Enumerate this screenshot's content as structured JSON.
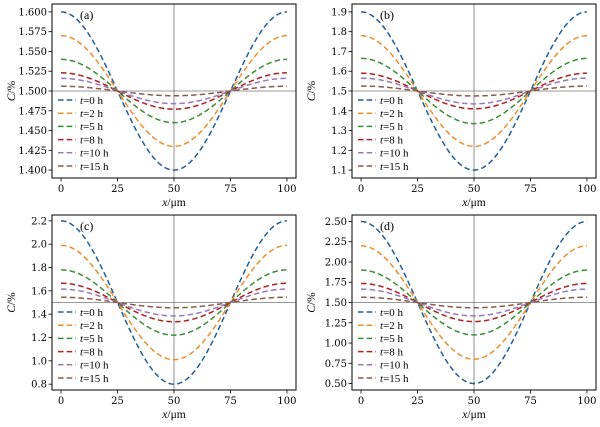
{
  "colors": {
    "t0": "#1f5f99",
    "t2": "#f08c2a",
    "t5": "#3a8f32",
    "t8": "#b31e1e",
    "t10": "#9a78bd",
    "t15": "#8a5a4a"
  },
  "chart_data": [
    {
      "type": "line",
      "panel_label": "(a)",
      "xlabel_var": "x",
      "xlabel_unit": "/μm",
      "ylabel_var": "C",
      "ylabel_unit": "/%",
      "xlim": [
        -4,
        104
      ],
      "ylim": [
        1.39,
        1.61
      ],
      "xticks": [
        0,
        25,
        50,
        75,
        100
      ],
      "yticks": [
        1.4,
        1.425,
        1.45,
        1.475,
        1.5,
        1.525,
        1.55,
        1.575,
        1.6
      ],
      "ytick_labels": [
        "1.400",
        "1.425",
        "1.450",
        "1.475",
        "1.500",
        "1.525",
        "1.550",
        "1.575",
        "1.600"
      ],
      "ref_x": 50,
      "ref_y": 1.5,
      "mean": 1.5,
      "legend_position": "lower-left",
      "series": [
        {
          "name_var": "t",
          "name_rest": "=0 h",
          "color_key": "t0",
          "amplitude": 0.1
        },
        {
          "name_var": "t",
          "name_rest": "=2 h",
          "color_key": "t2",
          "amplitude": 0.07
        },
        {
          "name_var": "t",
          "name_rest": "=5 h",
          "color_key": "t5",
          "amplitude": 0.04
        },
        {
          "name_var": "t",
          "name_rest": "=8 h",
          "color_key": "t8",
          "amplitude": 0.023
        },
        {
          "name_var": "t",
          "name_rest": "=10 h",
          "color_key": "t10",
          "amplitude": 0.016
        },
        {
          "name_var": "t",
          "name_rest": "=15 h",
          "color_key": "t15",
          "amplitude": 0.006
        }
      ]
    },
    {
      "type": "line",
      "panel_label": "(b)",
      "xlabel_var": "x",
      "xlabel_unit": "/μm",
      "ylabel_var": "C",
      "ylabel_unit": "/%",
      "xlim": [
        -4,
        104
      ],
      "ylim": [
        1.06,
        1.94
      ],
      "xticks": [
        0,
        25,
        50,
        75,
        100
      ],
      "yticks": [
        1.1,
        1.2,
        1.3,
        1.4,
        1.5,
        1.6,
        1.7,
        1.8,
        1.9
      ],
      "ytick_labels": [
        "1.1",
        "1.2",
        "1.3",
        "1.4",
        "1.5",
        "1.6",
        "1.7",
        "1.8",
        "1.9"
      ],
      "ref_x": 50,
      "ref_y": 1.5,
      "mean": 1.5,
      "legend_position": "lower-left",
      "series": [
        {
          "name_var": "t",
          "name_rest": "=0 h",
          "color_key": "t0",
          "amplitude": 0.4
        },
        {
          "name_var": "t",
          "name_rest": "=2 h",
          "color_key": "t2",
          "amplitude": 0.28
        },
        {
          "name_var": "t",
          "name_rest": "=5 h",
          "color_key": "t5",
          "amplitude": 0.165
        },
        {
          "name_var": "t",
          "name_rest": "=8 h",
          "color_key": "t8",
          "amplitude": 0.09
        },
        {
          "name_var": "t",
          "name_rest": "=10 h",
          "color_key": "t10",
          "amplitude": 0.065
        },
        {
          "name_var": "t",
          "name_rest": "=15 h",
          "color_key": "t15",
          "amplitude": 0.025
        }
      ]
    },
    {
      "type": "line",
      "panel_label": "(c)",
      "xlabel_var": "x",
      "xlabel_unit": "/μm",
      "ylabel_var": "C",
      "ylabel_unit": "/%",
      "xlim": [
        -4,
        104
      ],
      "ylim": [
        0.75,
        2.25
      ],
      "xticks": [
        0,
        25,
        50,
        75,
        100
      ],
      "yticks": [
        0.8,
        1.0,
        1.2,
        1.4,
        1.6,
        1.8,
        2.0,
        2.2
      ],
      "ytick_labels": [
        "0.8",
        "1.0",
        "1.2",
        "1.4",
        "1.6",
        "1.8",
        "2.0",
        "2.2"
      ],
      "ref_x": 50,
      "ref_y": 1.5,
      "mean": 1.5,
      "legend_position": "lower-left",
      "series": [
        {
          "name_var": "t",
          "name_rest": "=0 h",
          "color_key": "t0",
          "amplitude": 0.7
        },
        {
          "name_var": "t",
          "name_rest": "=2 h",
          "color_key": "t2",
          "amplitude": 0.49
        },
        {
          "name_var": "t",
          "name_rest": "=5 h",
          "color_key": "t5",
          "amplitude": 0.28
        },
        {
          "name_var": "t",
          "name_rest": "=8 h",
          "color_key": "t8",
          "amplitude": 0.165
        },
        {
          "name_var": "t",
          "name_rest": "=10 h",
          "color_key": "t10",
          "amplitude": 0.115
        },
        {
          "name_var": "t",
          "name_rest": "=15 h",
          "color_key": "t15",
          "amplitude": 0.045
        }
      ]
    },
    {
      "type": "line",
      "panel_label": "(d)",
      "xlabel_var": "x",
      "xlabel_unit": "/μm",
      "ylabel_var": "C",
      "ylabel_unit": "/%",
      "xlim": [
        -4,
        104
      ],
      "ylim": [
        0.42,
        2.58
      ],
      "xticks": [
        0,
        25,
        50,
        75,
        100
      ],
      "yticks": [
        0.5,
        0.75,
        1.0,
        1.25,
        1.5,
        1.75,
        2.0,
        2.25,
        2.5
      ],
      "ytick_labels": [
        "0.50",
        "0.75",
        "1.00",
        "1.25",
        "1.50",
        "1.75",
        "2.00",
        "2.25",
        "2.50"
      ],
      "ref_x": 50,
      "ref_y": 1.5,
      "mean": 1.5,
      "legend_position": "lower-left",
      "series": [
        {
          "name_var": "t",
          "name_rest": "=0 h",
          "color_key": "t0",
          "amplitude": 1.0
        },
        {
          "name_var": "t",
          "name_rest": "=2 h",
          "color_key": "t2",
          "amplitude": 0.7
        },
        {
          "name_var": "t",
          "name_rest": "=5 h",
          "color_key": "t5",
          "amplitude": 0.4
        },
        {
          "name_var": "t",
          "name_rest": "=8 h",
          "color_key": "t8",
          "amplitude": 0.235
        },
        {
          "name_var": "t",
          "name_rest": "=10 h",
          "color_key": "t10",
          "amplitude": 0.165
        },
        {
          "name_var": "t",
          "name_rest": "=15 h",
          "color_key": "t15",
          "amplitude": 0.065
        }
      ]
    }
  ]
}
